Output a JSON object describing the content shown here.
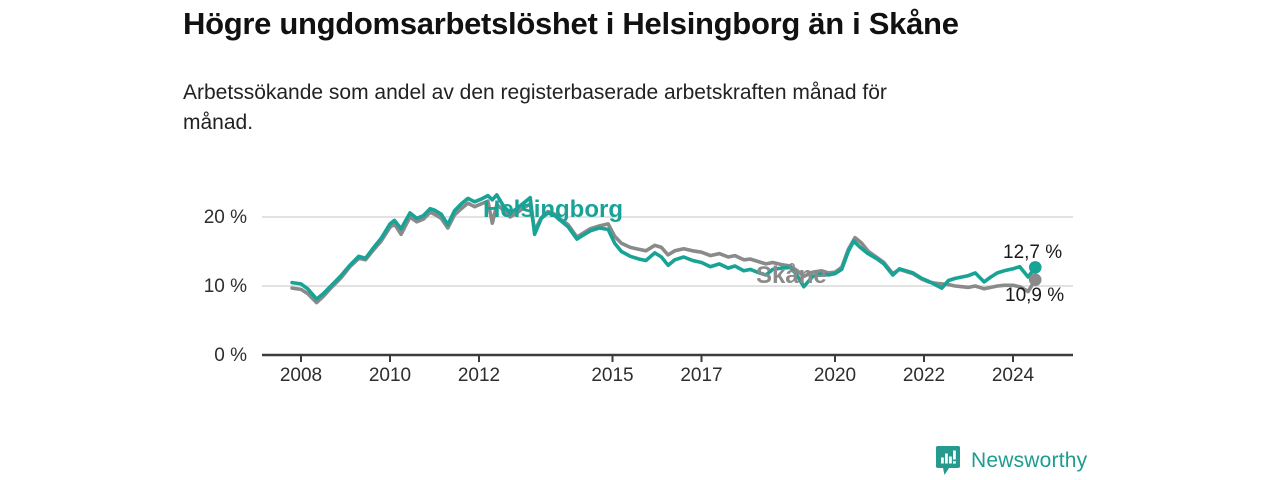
{
  "header": {
    "title": "Högre ungdomsarbetslöshet i Helsingborg än i Skåne",
    "subtitle": "Arbetssökande som andel av den registerbaserade arbetskraften månad för månad."
  },
  "footer": {
    "brand_name": "Newsworthy",
    "logo_icon": "newsworthy-speech-bubble-bar-chart-icon"
  },
  "colors": {
    "helsingborg_teal": "#18a396",
    "skane_gray": "#8a8a8a",
    "axis_line": "#3c3c3c",
    "grid_line": "#d9d9d9",
    "label_text": "#1a1a1a"
  },
  "chart_data": {
    "type": "line",
    "title": "Högre ungdomsarbetslöshet i Helsingborg än i Skåne",
    "xlabel": "",
    "ylabel": "",
    "unit": "%",
    "grid": "horizontal",
    "legend_position": "inline-labels",
    "x_axis": {
      "range": [
        2007.1,
        2025.3
      ],
      "ticks": [
        2008,
        2010,
        2012,
        2015,
        2017,
        2020,
        2022,
        2024
      ]
    },
    "y_axis": {
      "range": [
        0,
        25
      ],
      "ticks": [
        {
          "value": 0,
          "label": "0 %"
        },
        {
          "value": 10,
          "label": "10 %"
        },
        {
          "value": 20,
          "label": "20 %"
        }
      ]
    },
    "series": [
      {
        "name": "Skåne",
        "color": "#8a8a8a",
        "end_label": "10,9 %",
        "end_value": 10.9,
        "points": [
          [
            2007.8,
            9.7
          ],
          [
            2008.0,
            9.5
          ],
          [
            2008.15,
            8.9
          ],
          [
            2008.35,
            7.6
          ],
          [
            2008.5,
            8.5
          ],
          [
            2008.7,
            9.9
          ],
          [
            2008.9,
            11.2
          ],
          [
            2009.1,
            12.8
          ],
          [
            2009.3,
            14.0
          ],
          [
            2009.45,
            13.8
          ],
          [
            2009.6,
            15.0
          ],
          [
            2009.8,
            16.5
          ],
          [
            2010.0,
            18.5
          ],
          [
            2010.1,
            19.0
          ],
          [
            2010.25,
            17.5
          ],
          [
            2010.45,
            20.0
          ],
          [
            2010.6,
            19.3
          ],
          [
            2010.75,
            19.7
          ],
          [
            2010.9,
            20.7
          ],
          [
            2011.0,
            20.4
          ],
          [
            2011.15,
            19.8
          ],
          [
            2011.3,
            18.4
          ],
          [
            2011.45,
            20.3
          ],
          [
            2011.6,
            21.2
          ],
          [
            2011.75,
            22.0
          ],
          [
            2011.9,
            21.5
          ],
          [
            2012.05,
            21.9
          ],
          [
            2012.2,
            22.3
          ],
          [
            2012.3,
            19.1
          ],
          [
            2012.4,
            21.8
          ],
          [
            2012.55,
            21.0
          ],
          [
            2012.7,
            20.0
          ],
          [
            2012.85,
            20.6
          ],
          [
            2013.0,
            21.3
          ],
          [
            2013.15,
            21.9
          ],
          [
            2013.25,
            18.0
          ],
          [
            2013.4,
            19.9
          ],
          [
            2013.55,
            20.8
          ],
          [
            2013.7,
            20.4
          ],
          [
            2013.85,
            19.6
          ],
          [
            2014.0,
            18.9
          ],
          [
            2014.2,
            17.1
          ],
          [
            2014.35,
            17.7
          ],
          [
            2014.5,
            18.3
          ],
          [
            2014.7,
            18.7
          ],
          [
            2014.9,
            19.0
          ],
          [
            2015.05,
            17.2
          ],
          [
            2015.2,
            16.2
          ],
          [
            2015.4,
            15.6
          ],
          [
            2015.6,
            15.3
          ],
          [
            2015.75,
            15.1
          ],
          [
            2015.95,
            15.9
          ],
          [
            2016.1,
            15.6
          ],
          [
            2016.25,
            14.5
          ],
          [
            2016.4,
            15.1
          ],
          [
            2016.6,
            15.4
          ],
          [
            2016.8,
            15.1
          ],
          [
            2017.0,
            14.9
          ],
          [
            2017.2,
            14.4
          ],
          [
            2017.4,
            14.7
          ],
          [
            2017.6,
            14.2
          ],
          [
            2017.75,
            14.4
          ],
          [
            2017.95,
            13.8
          ],
          [
            2018.1,
            13.9
          ],
          [
            2018.3,
            13.5
          ],
          [
            2018.45,
            13.2
          ],
          [
            2018.6,
            13.4
          ],
          [
            2018.8,
            13.1
          ],
          [
            2019.0,
            12.9
          ],
          [
            2019.15,
            12.2
          ],
          [
            2019.3,
            11.4
          ],
          [
            2019.5,
            12.0
          ],
          [
            2019.7,
            12.2
          ],
          [
            2019.85,
            11.9
          ],
          [
            2020.0,
            12.0
          ],
          [
            2020.15,
            12.7
          ],
          [
            2020.3,
            15.3
          ],
          [
            2020.45,
            17.0
          ],
          [
            2020.6,
            16.2
          ],
          [
            2020.75,
            15.0
          ],
          [
            2020.95,
            14.1
          ],
          [
            2021.1,
            13.4
          ],
          [
            2021.3,
            11.8
          ],
          [
            2021.45,
            12.4
          ],
          [
            2021.6,
            12.1
          ],
          [
            2021.75,
            11.8
          ],
          [
            2021.95,
            11.0
          ],
          [
            2022.1,
            10.6
          ],
          [
            2022.25,
            10.4
          ],
          [
            2022.4,
            10.3
          ],
          [
            2022.55,
            10.2
          ],
          [
            2022.7,
            10.0
          ],
          [
            2022.85,
            9.9
          ],
          [
            2023.0,
            9.8
          ],
          [
            2023.15,
            10.0
          ],
          [
            2023.35,
            9.6
          ],
          [
            2023.5,
            9.8
          ],
          [
            2023.65,
            10.0
          ],
          [
            2023.8,
            10.1
          ],
          [
            2024.0,
            10.1
          ],
          [
            2024.15,
            9.9
          ],
          [
            2024.34,
            9.2
          ],
          [
            2024.5,
            10.9
          ]
        ]
      },
      {
        "name": "Helsingborg",
        "color": "#18a396",
        "end_label": "12,7 %",
        "end_value": 12.7,
        "points": [
          [
            2007.8,
            10.5
          ],
          [
            2008.0,
            10.3
          ],
          [
            2008.15,
            9.6
          ],
          [
            2008.35,
            8.1
          ],
          [
            2008.5,
            8.9
          ],
          [
            2008.7,
            10.2
          ],
          [
            2008.9,
            11.5
          ],
          [
            2009.1,
            13.0
          ],
          [
            2009.3,
            14.3
          ],
          [
            2009.45,
            14.0
          ],
          [
            2009.6,
            15.3
          ],
          [
            2009.8,
            16.9
          ],
          [
            2010.0,
            19.0
          ],
          [
            2010.1,
            19.5
          ],
          [
            2010.25,
            18.3
          ],
          [
            2010.45,
            20.6
          ],
          [
            2010.6,
            19.8
          ],
          [
            2010.75,
            20.2
          ],
          [
            2010.9,
            21.2
          ],
          [
            2011.0,
            21.0
          ],
          [
            2011.15,
            20.4
          ],
          [
            2011.3,
            18.9
          ],
          [
            2011.45,
            20.9
          ],
          [
            2011.6,
            21.9
          ],
          [
            2011.75,
            22.7
          ],
          [
            2011.9,
            22.2
          ],
          [
            2012.05,
            22.6
          ],
          [
            2012.2,
            23.1
          ],
          [
            2012.3,
            22.5
          ],
          [
            2012.4,
            23.2
          ],
          [
            2012.55,
            21.6
          ],
          [
            2012.7,
            20.6
          ],
          [
            2012.85,
            21.2
          ],
          [
            2013.0,
            22.0
          ],
          [
            2013.15,
            22.8
          ],
          [
            2013.25,
            17.5
          ],
          [
            2013.4,
            19.8
          ],
          [
            2013.55,
            20.6
          ],
          [
            2013.7,
            20.2
          ],
          [
            2013.85,
            19.4
          ],
          [
            2014.0,
            18.6
          ],
          [
            2014.2,
            16.8
          ],
          [
            2014.35,
            17.4
          ],
          [
            2014.5,
            18.0
          ],
          [
            2014.7,
            18.4
          ],
          [
            2014.9,
            18.2
          ],
          [
            2015.05,
            16.2
          ],
          [
            2015.2,
            15.0
          ],
          [
            2015.4,
            14.3
          ],
          [
            2015.6,
            13.9
          ],
          [
            2015.75,
            13.7
          ],
          [
            2015.95,
            14.8
          ],
          [
            2016.1,
            14.2
          ],
          [
            2016.25,
            13.0
          ],
          [
            2016.4,
            13.8
          ],
          [
            2016.6,
            14.2
          ],
          [
            2016.8,
            13.7
          ],
          [
            2017.0,
            13.4
          ],
          [
            2017.2,
            12.8
          ],
          [
            2017.4,
            13.2
          ],
          [
            2017.6,
            12.6
          ],
          [
            2017.75,
            12.9
          ],
          [
            2017.95,
            12.2
          ],
          [
            2018.1,
            12.4
          ],
          [
            2018.3,
            11.9
          ],
          [
            2018.45,
            11.6
          ],
          [
            2018.6,
            12.4
          ],
          [
            2018.8,
            12.6
          ],
          [
            2019.0,
            12.7
          ],
          [
            2019.15,
            11.5
          ],
          [
            2019.3,
            9.9
          ],
          [
            2019.5,
            11.4
          ],
          [
            2019.7,
            11.8
          ],
          [
            2019.85,
            11.6
          ],
          [
            2020.0,
            11.8
          ],
          [
            2020.15,
            12.4
          ],
          [
            2020.3,
            15.0
          ],
          [
            2020.42,
            16.5
          ],
          [
            2020.55,
            15.7
          ],
          [
            2020.72,
            14.8
          ],
          [
            2020.95,
            13.9
          ],
          [
            2021.1,
            13.2
          ],
          [
            2021.3,
            11.6
          ],
          [
            2021.45,
            12.5
          ],
          [
            2021.6,
            12.2
          ],
          [
            2021.75,
            11.9
          ],
          [
            2021.95,
            11.1
          ],
          [
            2022.1,
            10.7
          ],
          [
            2022.25,
            10.2
          ],
          [
            2022.4,
            9.7
          ],
          [
            2022.55,
            10.8
          ],
          [
            2022.7,
            11.1
          ],
          [
            2022.85,
            11.3
          ],
          [
            2023.0,
            11.5
          ],
          [
            2023.15,
            11.9
          ],
          [
            2023.35,
            10.6
          ],
          [
            2023.5,
            11.3
          ],
          [
            2023.65,
            11.9
          ],
          [
            2023.8,
            12.2
          ],
          [
            2024.0,
            12.5
          ],
          [
            2024.15,
            12.8
          ],
          [
            2024.34,
            11.3
          ],
          [
            2024.5,
            12.7
          ]
        ]
      }
    ]
  }
}
